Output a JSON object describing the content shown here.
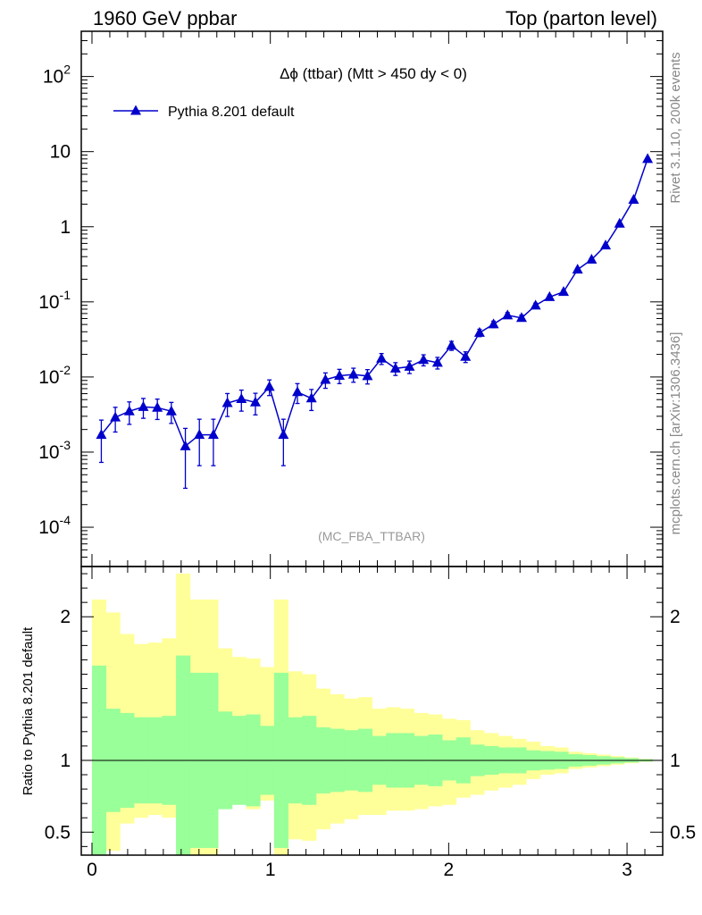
{
  "header": {
    "left": "1960 GeV ppbar",
    "right": "Top (parton level)"
  },
  "side_labels": {
    "rivet": "Rivet 3.1.10,  200k events",
    "mcplots": "mcplots.cern.ch [arXiv:1306.3436]"
  },
  "chart_data": [
    {
      "type": "line",
      "title": "Δϕ (ttbar) (Mtt > 450 dy < 0)",
      "watermark": "(MC_FBA_TTBAR)",
      "yscale": "log",
      "xlim": [
        -0.06,
        3.2
      ],
      "ylim": [
        3e-05,
        400
      ],
      "y_tick_labels": [
        "10^-4",
        "10^-3",
        "10^-2",
        "10^-1",
        "1",
        "10",
        "10^2"
      ],
      "legend_placement": "top-left",
      "series": [
        {
          "name": "Pythia 8.201 default",
          "color": "#0000cc",
          "marker": "triangle-up",
          "x": [
            0.0524,
            0.1309,
            0.2094,
            0.288,
            0.3665,
            0.445,
            0.5236,
            0.6021,
            0.6807,
            0.7592,
            0.8378,
            0.9163,
            0.9948,
            1.0734,
            1.1519,
            1.2305,
            1.309,
            1.3875,
            1.4661,
            1.5446,
            1.6232,
            1.7017,
            1.7802,
            1.8588,
            1.9373,
            2.0159,
            2.0944,
            2.1729,
            2.2515,
            2.33,
            2.4086,
            2.4871,
            2.5656,
            2.6442,
            2.7227,
            2.8013,
            2.8798,
            2.9583,
            3.0369,
            3.1154
          ],
          "y": [
            0.0017,
            0.0029,
            0.0035,
            0.004,
            0.0039,
            0.0035,
            0.0012,
            0.0017,
            0.0017,
            0.0045,
            0.0051,
            0.0046,
            0.0074,
            0.0017,
            0.0063,
            0.0052,
            0.0092,
            0.0104,
            0.0108,
            0.0103,
            0.0176,
            0.013,
            0.0137,
            0.0169,
            0.0155,
            0.0262,
            0.0186,
            0.0388,
            0.0504,
            0.0663,
            0.0612,
            0.0896,
            0.116,
            0.136,
            0.27,
            0.366,
            0.565,
            1.1,
            2.29,
            8.0
          ],
          "yerr_low": [
            0.00097,
            0.00105,
            0.00116,
            0.00118,
            0.00118,
            0.00109,
            0.00087,
            0.00104,
            0.00104,
            0.00152,
            0.00159,
            0.00147,
            0.00174,
            0.00104,
            0.00186,
            0.00162,
            0.00213,
            0.00224,
            0.00229,
            0.00223,
            0.00292,
            0.00252,
            0.00259,
            0.00284,
            0.00273,
            0.00358,
            0.00302,
            0.00436,
            0.00496,
            0.00572,
            0.00548,
            0.00661,
            0.00753,
            0.00812,
            0.0115,
            0.0134,
            0.0166,
            0.0232,
            0.0336,
            0.063
          ],
          "yerr_high": [
            0.00097,
            0.00105,
            0.00116,
            0.00118,
            0.00118,
            0.00109,
            0.00087,
            0.00104,
            0.00104,
            0.00152,
            0.00159,
            0.00147,
            0.00174,
            0.00104,
            0.00186,
            0.00162,
            0.00213,
            0.00224,
            0.00229,
            0.00223,
            0.00292,
            0.00252,
            0.00259,
            0.00284,
            0.00273,
            0.00358,
            0.00302,
            0.00436,
            0.00496,
            0.00572,
            0.00548,
            0.00661,
            0.00753,
            0.00812,
            0.0115,
            0.0134,
            0.0166,
            0.0232,
            0.0336,
            0.063
          ]
        }
      ]
    },
    {
      "type": "area",
      "ylabel": "Ratio to Pythia 8.201 default",
      "xlim": [
        -0.06,
        3.2
      ],
      "ylim": [
        0.34,
        2.35
      ],
      "x_ticks": [
        0,
        1,
        2,
        3
      ],
      "y_ticks": [
        0.5,
        1,
        2
      ],
      "reference_line": 1,
      "bin_edges": [
        0.0,
        0.0785,
        0.1571,
        0.2356,
        0.3142,
        0.3927,
        0.4712,
        0.5498,
        0.6283,
        0.7069,
        0.7854,
        0.8639,
        0.9425,
        1.021,
        1.0996,
        1.1781,
        1.2566,
        1.3352,
        1.4137,
        1.4923,
        1.5708,
        1.6493,
        1.7279,
        1.8064,
        1.885,
        1.9635,
        2.042,
        2.1206,
        2.1991,
        2.2777,
        2.3562,
        2.4347,
        2.5133,
        2.5918,
        2.6704,
        2.7489,
        2.8274,
        2.906,
        2.9845,
        3.0631,
        3.1416
      ],
      "bands": [
        {
          "name": "MC stat band",
          "color": "#99ff99",
          "low": [
            0.34,
            0.64,
            0.67,
            0.7,
            0.7,
            0.69,
            0.27,
            0.39,
            0.39,
            0.66,
            0.69,
            0.68,
            0.76,
            0.39,
            0.7,
            0.69,
            0.77,
            0.78,
            0.79,
            0.78,
            0.83,
            0.81,
            0.81,
            0.83,
            0.82,
            0.86,
            0.84,
            0.89,
            0.9,
            0.91,
            0.91,
            0.93,
            0.935,
            0.94,
            0.957,
            0.963,
            0.971,
            0.979,
            0.985,
            0.992
          ],
          "high": [
            1.66,
            1.36,
            1.33,
            1.3,
            1.3,
            1.31,
            1.73,
            1.61,
            1.61,
            1.34,
            1.31,
            1.32,
            1.24,
            1.61,
            1.3,
            1.31,
            1.23,
            1.22,
            1.21,
            1.22,
            1.17,
            1.19,
            1.19,
            1.17,
            1.18,
            1.14,
            1.16,
            1.11,
            1.1,
            1.09,
            1.09,
            1.07,
            1.065,
            1.06,
            1.043,
            1.037,
            1.029,
            1.021,
            1.015,
            1.008
          ]
        },
        {
          "name": "MC total band",
          "color": "#ffff99",
          "low": [
            0.34,
            0.37,
            0.56,
            0.6,
            0.62,
            0.6,
            0.34,
            0.34,
            0.34,
            0.69,
            0.71,
            0.66,
            0.72,
            0.34,
            0.45,
            0.44,
            0.52,
            0.56,
            0.59,
            0.62,
            0.62,
            0.65,
            0.65,
            0.66,
            0.68,
            0.69,
            0.74,
            0.76,
            0.79,
            0.81,
            0.83,
            0.87,
            0.9,
            0.91,
            0.94,
            0.95,
            0.96,
            0.97,
            0.98,
            0.99
          ],
          "high": [
            2.12,
            2.03,
            1.88,
            1.81,
            1.82,
            1.85,
            2.3,
            2.12,
            2.12,
            1.78,
            1.72,
            1.71,
            1.65,
            2.12,
            1.62,
            1.6,
            1.5,
            1.46,
            1.43,
            1.44,
            1.36,
            1.37,
            1.36,
            1.33,
            1.32,
            1.29,
            1.28,
            1.21,
            1.19,
            1.17,
            1.15,
            1.13,
            1.1,
            1.09,
            1.06,
            1.05,
            1.04,
            1.03,
            1.02,
            1.01
          ]
        }
      ]
    }
  ]
}
